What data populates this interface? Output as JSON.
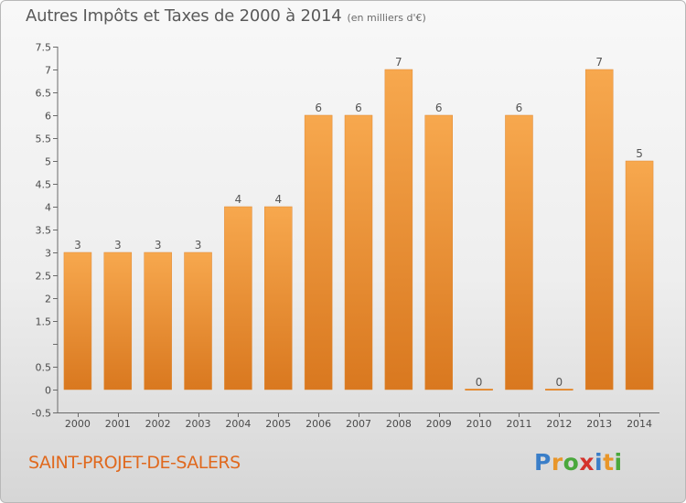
{
  "header": {
    "title": "Autres Impôts et Taxes de 2000 à 2014",
    "subtitle": "(en milliers d'€)"
  },
  "footer": {
    "commune": "SAINT-PROJET-DE-SALERS",
    "logo_letters": [
      "P",
      "r",
      "o",
      "x",
      "i",
      "t",
      "i"
    ],
    "logo_colors": [
      "#3a7ec8",
      "#e8962a",
      "#4aa83c",
      "#d4332c",
      "#3a7ec8",
      "#e8962a",
      "#4aa83c"
    ]
  },
  "colors": {
    "bar_light": "#f7a84e",
    "bar_dark": "#d9781f",
    "axis": "#6a6a6a",
    "grid": "#cccccc"
  },
  "chart_data": {
    "type": "bar",
    "title": "Autres Impôts et Taxes de 2000 à 2014",
    "subtitle": "(en milliers d'€)",
    "categories": [
      "2000",
      "2001",
      "2002",
      "2003",
      "2004",
      "2005",
      "2006",
      "2007",
      "2008",
      "2009",
      "2010",
      "2011",
      "2012",
      "2013",
      "2014"
    ],
    "values": [
      3,
      3,
      3,
      3,
      4,
      4,
      6,
      6,
      7,
      6,
      0,
      6,
      0,
      7,
      5
    ],
    "value_labels": [
      "3",
      "3",
      "3",
      "3",
      "4",
      "4",
      "6",
      "6",
      "7",
      "6",
      "0",
      "6",
      "0",
      "7",
      "5"
    ],
    "ylim": [
      -0.5,
      7.5
    ],
    "yticks": [
      -0.5,
      0,
      0.5,
      1,
      1.5,
      2,
      2.5,
      3,
      3.5,
      4,
      4.5,
      5,
      5.5,
      6,
      6.5,
      7,
      7.5
    ],
    "ytick_labels": [
      "-0.5",
      "0",
      "0.5",
      "",
      "1.5",
      "2",
      "2.5",
      "3",
      "3.5",
      "4",
      "4.5",
      "5",
      "5.5",
      "6",
      "6.5",
      "7",
      "7.5"
    ],
    "xlabel": "",
    "ylabel": "",
    "grid": false,
    "legend": "none"
  }
}
